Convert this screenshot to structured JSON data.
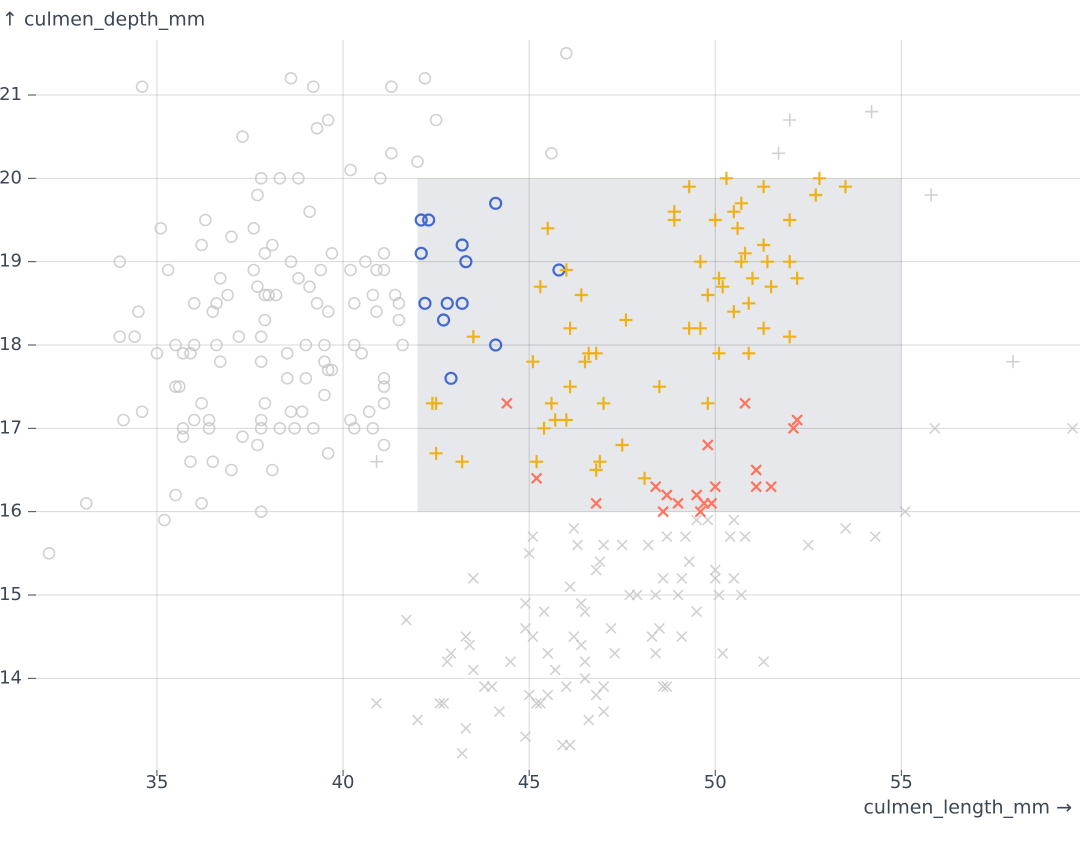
{
  "chart_data": {
    "type": "scatter",
    "x_label": "culmen_length_mm →",
    "y_label": "↑ culmen_depth_mm",
    "xlim": [
      31.75,
      59.8
    ],
    "ylim": [
      12.9,
      21.66
    ],
    "xticks": [
      35,
      40,
      45,
      50,
      55
    ],
    "yticks": [
      14,
      15,
      16,
      17,
      18,
      19,
      20,
      21
    ],
    "grid": true,
    "brush": {
      "x": [
        42,
        55
      ],
      "y": [
        16,
        20
      ],
      "color": "#e6e8eb"
    },
    "inactive_color": "#c2c2c2",
    "series": [
      {
        "symbol": "circle",
        "color": "#4269d0",
        "x": [
          46.0,
          34.6,
          38.6,
          39.2,
          42.2,
          41.3,
          39.6,
          37.3,
          39.3,
          42.5,
          45.6,
          41.3,
          42.0,
          40.2,
          37.8,
          38.3,
          38.8,
          41.0,
          37.7,
          39.1,
          36.3,
          35.1,
          37.0,
          37.6,
          36.2,
          38.1,
          39.7,
          41.1,
          34.0,
          37.9,
          38.6,
          35.3,
          37.6,
          39.4,
          40.2,
          40.6,
          41.1,
          40.9,
          36.7,
          37.7,
          38.2,
          38.8,
          39.1,
          36.0,
          36.6,
          36.9,
          38.0,
          39.3,
          40.3,
          40.8,
          41.4,
          41.5,
          34.5,
          36.5,
          37.9,
          39.6,
          40.9,
          41.5,
          34.0,
          34.4,
          35.5,
          35.9,
          36.0,
          36.6,
          37.2,
          37.8,
          38.5,
          39.0,
          39.5,
          40.3,
          40.5,
          41.6,
          35.0,
          35.7,
          36.7,
          37.8,
          39.5,
          39.6,
          39.7,
          35.5,
          35.6,
          38.5,
          39.0,
          41.1,
          41.1,
          37.9,
          39.5,
          41.1,
          34.1,
          34.6,
          36.2,
          36.0,
          36.4,
          37.8,
          38.6,
          38.9,
          40.2,
          40.7,
          35.7,
          36.4,
          37.3,
          37.8,
          38.3,
          38.7,
          39.2,
          40.3,
          40.8,
          35.7,
          37.7,
          39.6,
          41.1,
          35.9,
          36.5,
          37.0,
          38.1,
          35.5,
          36.2,
          37.8,
          33.1,
          35.2,
          32.1,
          37.9,
          42.1,
          42.3,
          42.1,
          43.2,
          43.3,
          44.1,
          45.8,
          42.2,
          42.8,
          43.2,
          42.7,
          44.1,
          42.9
        ],
        "values": [
          21.5,
          21.1,
          21.2,
          21.1,
          21.2,
          21.1,
          20.7,
          20.5,
          20.6,
          20.7,
          20.3,
          20.3,
          20.2,
          20.1,
          20.0,
          20.0,
          20.0,
          20.0,
          19.8,
          19.6,
          19.5,
          19.4,
          19.3,
          19.4,
          19.2,
          19.2,
          19.1,
          19.1,
          19.0,
          19.1,
          19.0,
          18.9,
          18.9,
          18.9,
          18.9,
          19.0,
          18.9,
          18.9,
          18.8,
          18.7,
          18.6,
          18.8,
          18.7,
          18.5,
          18.5,
          18.6,
          18.6,
          18.5,
          18.5,
          18.6,
          18.6,
          18.5,
          18.4,
          18.4,
          18.3,
          18.4,
          18.4,
          18.3,
          18.1,
          18.1,
          18.0,
          17.9,
          18.0,
          18.0,
          18.1,
          18.1,
          17.9,
          18.0,
          18.0,
          18.0,
          17.9,
          18.0,
          17.9,
          17.9,
          17.8,
          17.8,
          17.8,
          17.7,
          17.7,
          17.5,
          17.5,
          17.6,
          17.6,
          17.6,
          17.5,
          17.3,
          17.4,
          17.3,
          17.1,
          17.2,
          17.3,
          17.1,
          17.1,
          17.1,
          17.2,
          17.2,
          17.1,
          17.2,
          17.0,
          17.0,
          16.9,
          17.0,
          17.0,
          17.0,
          17.0,
          17.0,
          17.0,
          16.9,
          16.8,
          16.7,
          16.8,
          16.6,
          16.6,
          16.5,
          16.5,
          16.2,
          16.1,
          16.0,
          16.1,
          15.9,
          15.5,
          18.6,
          19.5,
          19.5,
          19.1,
          19.2,
          19.0,
          19.7,
          18.9,
          18.5,
          18.5,
          18.5,
          18.3,
          18.0,
          17.6
        ]
      },
      {
        "symbol": "cross",
        "color": "#ff725c",
        "x": [
          44.4,
          50.8,
          52.2,
          52.1,
          49.8,
          45.2,
          51.1,
          46.8,
          48.4,
          48.7,
          49.0,
          49.5,
          49.6,
          49.9,
          50.0,
          48.6,
          51.1,
          51.5,
          49.7,
          59.6,
          55.9,
          55.1,
          54.3,
          53.5,
          52.5,
          50.5,
          49.8,
          48.7,
          48.2,
          49.2,
          49.5,
          50.4,
          50.8,
          45.1,
          46.2,
          46.3,
          46.9,
          47.0,
          47.5,
          45.0,
          49.3,
          46.8,
          50.0,
          50.0,
          50.5,
          48.6,
          47.9,
          47.7,
          48.4,
          49.1,
          50.1,
          50.7,
          46.1,
          46.4,
          46.5,
          49.0,
          49.5,
          43.5,
          44.9,
          45.4,
          47.2,
          48.5,
          49.1,
          41.7,
          44.9,
          46.2,
          48.3,
          43.3,
          45.1,
          46.4,
          42.9,
          43.5,
          44.0,
          44.5,
          45.5,
          46.5,
          47.3,
          48.4,
          50.2,
          51.3,
          42.8,
          43.4,
          43.8,
          45.0,
          45.5,
          46.0,
          46.5,
          47.0,
          48.6,
          48.7,
          45.7,
          40.9,
          42.6,
          45.2,
          45.3,
          46.8,
          47.0,
          44.2,
          42.0,
          43.3,
          46.6,
          44.9,
          45.9,
          42.7,
          43.2,
          46.1
        ],
        "values": [
          17.3,
          17.3,
          17.1,
          17.0,
          16.8,
          16.4,
          16.5,
          16.1,
          16.3,
          16.2,
          16.1,
          16.2,
          16.0,
          16.1,
          16.3,
          16.0,
          16.3,
          16.3,
          16.1,
          17.0,
          17.0,
          16.0,
          15.7,
          15.8,
          15.6,
          15.9,
          15.9,
          15.7,
          15.6,
          15.7,
          15.9,
          15.7,
          15.7,
          15.7,
          15.8,
          15.6,
          15.4,
          15.6,
          15.6,
          15.5,
          15.4,
          15.3,
          15.3,
          15.2,
          15.2,
          15.2,
          15.0,
          15.0,
          15.0,
          15.2,
          15.0,
          15.0,
          15.1,
          14.9,
          14.8,
          15.0,
          14.8,
          15.2,
          14.9,
          14.8,
          14.6,
          14.6,
          14.5,
          14.7,
          14.6,
          14.5,
          14.5,
          14.5,
          14.5,
          14.4,
          14.3,
          14.1,
          13.9,
          14.2,
          14.3,
          14.2,
          14.3,
          14.3,
          14.3,
          14.2,
          14.2,
          14.4,
          13.9,
          13.8,
          13.8,
          13.9,
          14.0,
          13.9,
          13.9,
          13.9,
          14.1,
          13.7,
          13.7,
          13.7,
          13.7,
          13.8,
          13.6,
          13.6,
          13.5,
          13.4,
          13.5,
          13.3,
          13.2,
          13.7,
          13.1,
          13.2
        ]
      },
      {
        "symbol": "plus",
        "color": "#efb118",
        "x": [
          54.2,
          52.0,
          51.7,
          55.8,
          58.0,
          40.9,
          49.3,
          50.3,
          51.3,
          52.8,
          53.5,
          52.7,
          50.7,
          50.5,
          48.9,
          48.9,
          50.0,
          52.0,
          50.6,
          45.5,
          51.3,
          50.8,
          50.7,
          49.6,
          51.4,
          52.0,
          46.0,
          50.1,
          51.0,
          52.2,
          45.3,
          51.5,
          49.8,
          46.4,
          50.2,
          50.9,
          50.5,
          47.6,
          46.1,
          49.3,
          49.6,
          51.3,
          52.0,
          43.5,
          50.1,
          50.9,
          46.5,
          46.6,
          46.8,
          45.1,
          48.5,
          46.1,
          42.5,
          42.4,
          45.6,
          47.0,
          49.8,
          45.7,
          46.0,
          45.4,
          47.5,
          42.5,
          43.2,
          45.2,
          46.9,
          46.8,
          48.1
        ],
        "values": [
          20.8,
          20.7,
          20.3,
          19.8,
          17.8,
          16.6,
          19.9,
          20.0,
          19.9,
          20.0,
          19.9,
          19.8,
          19.7,
          19.6,
          19.6,
          19.5,
          19.5,
          19.5,
          19.4,
          19.4,
          19.2,
          19.1,
          19.0,
          19.0,
          19.0,
          19.0,
          18.9,
          18.8,
          18.8,
          18.8,
          18.7,
          18.7,
          18.6,
          18.6,
          18.7,
          18.5,
          18.4,
          18.3,
          18.2,
          18.2,
          18.2,
          18.2,
          18.1,
          18.1,
          17.9,
          17.9,
          17.8,
          17.9,
          17.9,
          17.8,
          17.5,
          17.5,
          17.3,
          17.3,
          17.3,
          17.3,
          17.3,
          17.1,
          17.1,
          17.0,
          16.8,
          16.7,
          16.6,
          16.6,
          16.6,
          16.5,
          16.4
        ]
      }
    ]
  }
}
